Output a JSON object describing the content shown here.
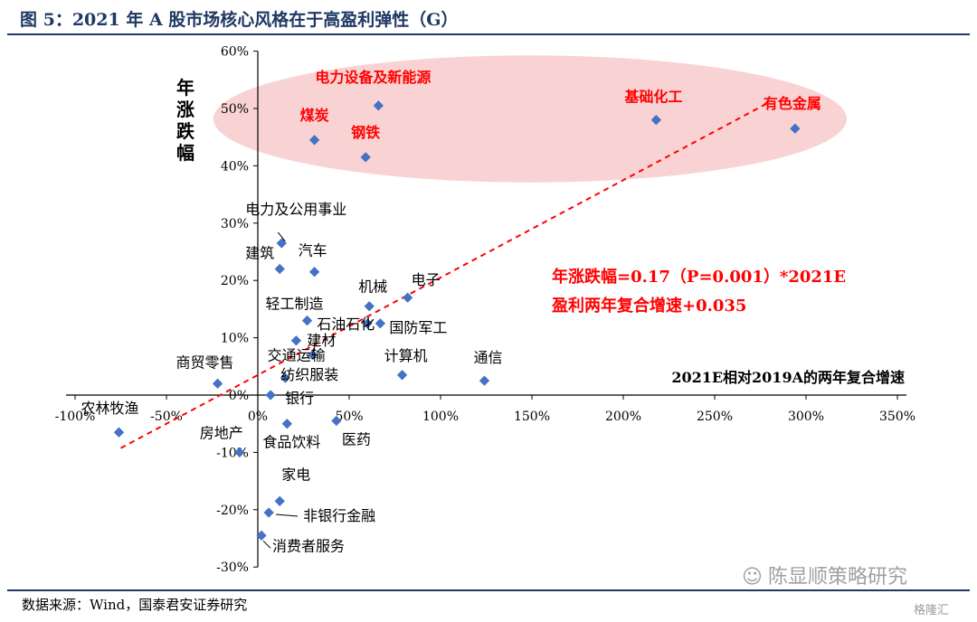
{
  "header": {
    "title": "图 5：2021 年 A 股市场核心风格在于高盈利弹性（G）"
  },
  "footer": {
    "source": "数据来源：Wind，国泰君安证券研究",
    "wechat_account": "陈显顺策略研究",
    "wechat_icon": "wechat-icon",
    "watermark": "格隆汇"
  },
  "colors": {
    "title": "#1f3864",
    "marker": "#4472c4",
    "highlight_text": "#ff0000",
    "ellipse_fill": "#f7c8c8",
    "trendline": "#ff0000"
  },
  "chart_data": {
    "type": "scatter",
    "xlabel": "2021E相对2019A的两年复合增速",
    "ylabel": "年涨跌幅",
    "xlim": [
      -100,
      350
    ],
    "ylim": [
      -30,
      60
    ],
    "x_ticks": [
      "-100%",
      "-50%",
      "0%",
      "50%",
      "100%",
      "150%",
      "200%",
      "250%",
      "300%",
      "350%"
    ],
    "y_ticks": [
      "-30%",
      "-20%",
      "-10%",
      "0%",
      "10%",
      "20%",
      "30%",
      "40%",
      "50%",
      "60%"
    ],
    "grid": false,
    "regression": {
      "label_line1": "年涨跌幅=0.17（P=0.001）*2021E",
      "label_line2": "盈利两年复合增速+0.035",
      "slope": 0.17,
      "intercept": 3.5,
      "x_range": [
        -75,
        280
      ],
      "style": "dashed"
    },
    "highlight_ellipse": {
      "x_range": [
        -2,
        300
      ],
      "y_range": [
        39,
        58
      ]
    },
    "points": [
      {
        "name": "电力设备及新能源",
        "x": 66,
        "y": 50.5,
        "highlight": true
      },
      {
        "name": "基础化工",
        "x": 218,
        "y": 48,
        "highlight": true
      },
      {
        "name": "有色金属",
        "x": 294,
        "y": 46.5,
        "highlight": true
      },
      {
        "name": "煤炭",
        "x": 31,
        "y": 44.5,
        "highlight": true
      },
      {
        "name": "钢铁",
        "x": 59,
        "y": 41.5,
        "highlight": true
      },
      {
        "name": "电力及公用事业",
        "x": 13,
        "y": 26.5,
        "highlight": false
      },
      {
        "name": "建筑",
        "x": 12,
        "y": 22,
        "highlight": false
      },
      {
        "name": "汽车",
        "x": 31,
        "y": 21.5,
        "highlight": false
      },
      {
        "name": "电子",
        "x": 82,
        "y": 17,
        "highlight": false
      },
      {
        "name": "机械",
        "x": 61,
        "y": 15.5,
        "highlight": false
      },
      {
        "name": "轻工制造",
        "x": 27,
        "y": 13,
        "highlight": false
      },
      {
        "name": "石油石化",
        "x": 60,
        "y": 12.5,
        "highlight": false
      },
      {
        "name": "国防军工",
        "x": 67,
        "y": 12.5,
        "highlight": false
      },
      {
        "name": "建材",
        "x": 21,
        "y": 9.5,
        "highlight": false
      },
      {
        "name": "交通运输",
        "x": 30,
        "y": 7,
        "highlight": false
      },
      {
        "name": "计算机",
        "x": 79,
        "y": 3.5,
        "highlight": false
      },
      {
        "name": "通信",
        "x": 124,
        "y": 2.5,
        "highlight": false
      },
      {
        "name": "商贸零售",
        "x": -22,
        "y": 2,
        "highlight": false
      },
      {
        "name": "纺织服装",
        "x": 15,
        "y": 3,
        "highlight": false
      },
      {
        "name": "银行",
        "x": 7,
        "y": 0,
        "highlight": false
      },
      {
        "name": "农林牧渔",
        "x": -76,
        "y": -6.5,
        "highlight": false
      },
      {
        "name": "房地产",
        "x": -10,
        "y": -10,
        "highlight": false
      },
      {
        "name": "食品饮料",
        "x": 16,
        "y": -5,
        "highlight": false
      },
      {
        "name": "医药",
        "x": 43,
        "y": -4.5,
        "highlight": false
      },
      {
        "name": "家电",
        "x": 12,
        "y": -18.5,
        "highlight": false
      },
      {
        "name": "非银行金融",
        "x": 6,
        "y": -20.5,
        "highlight": false
      },
      {
        "name": "消费者服务",
        "x": 2,
        "y": -24.5,
        "highlight": false
      }
    ]
  }
}
